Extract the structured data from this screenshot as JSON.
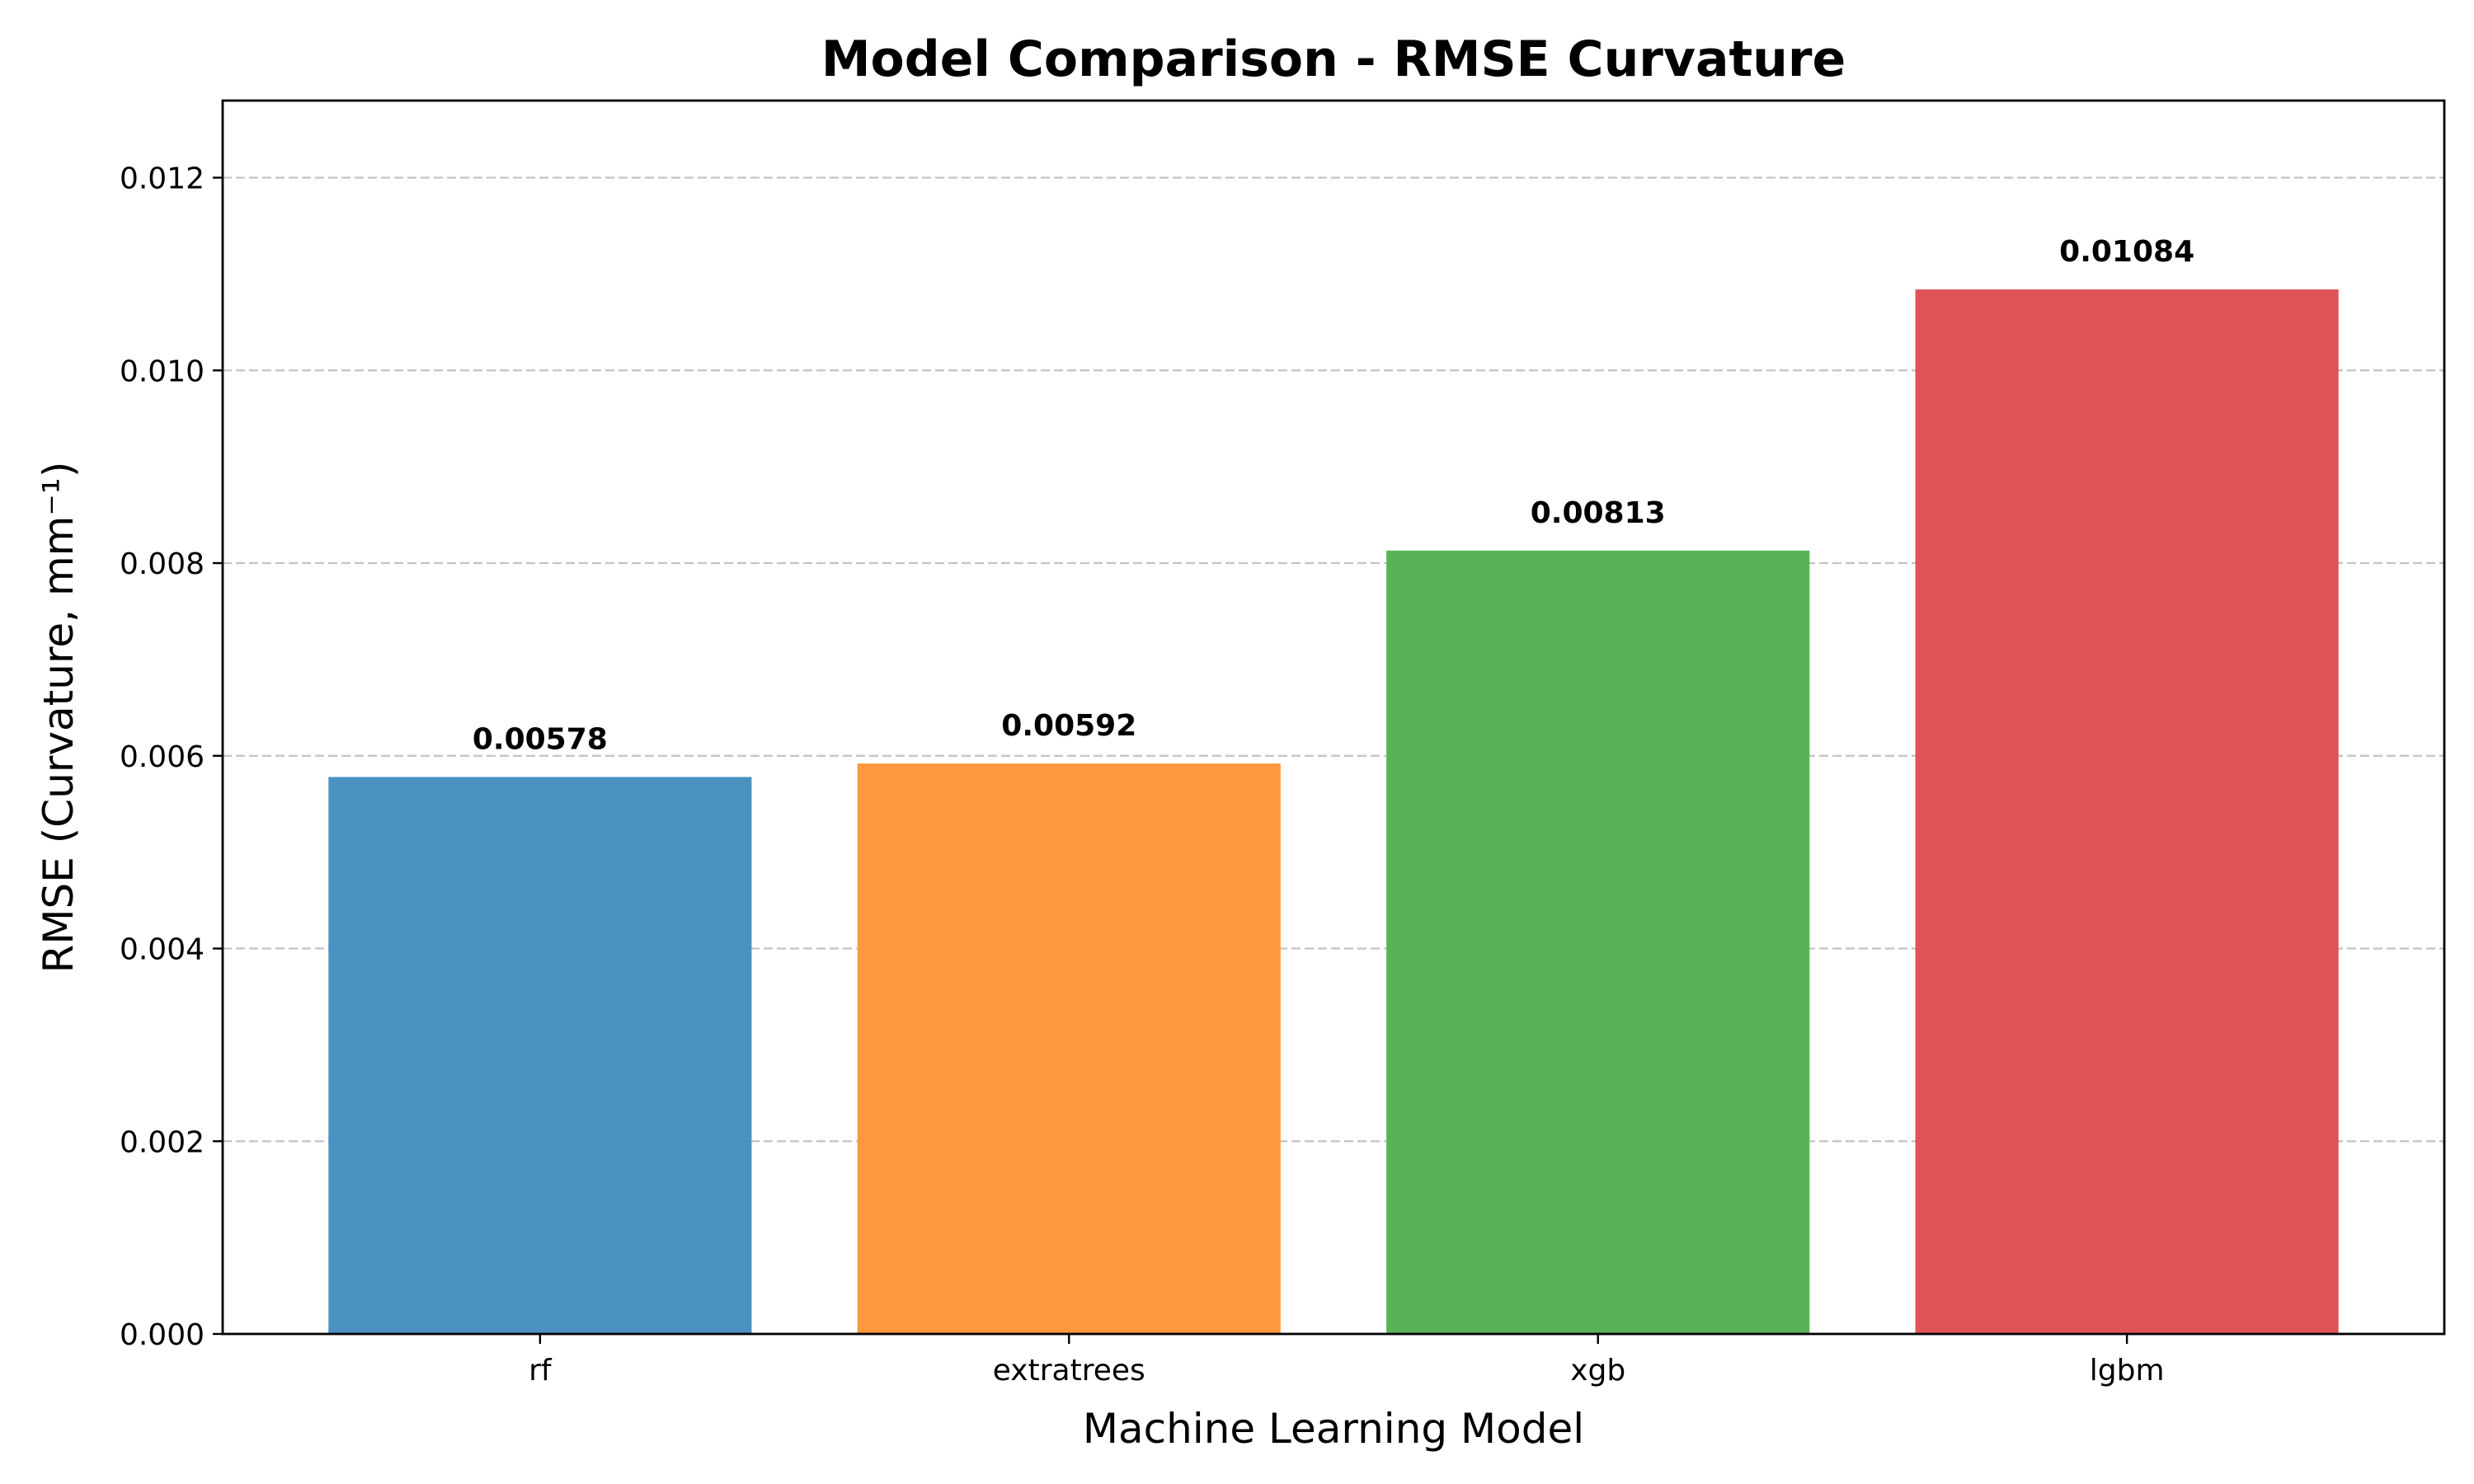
{
  "chart_data": {
    "type": "bar",
    "title": "Model Comparison - RMSE Curvature",
    "xlabel": "Machine Learning Model",
    "ylabel": "RMSE (Curvature, mm⁻¹)",
    "categories": [
      "rf",
      "extratrees",
      "xgb",
      "lgbm"
    ],
    "values": [
      0.00578,
      0.00592,
      0.00813,
      0.01084
    ],
    "value_labels": [
      "0.00578",
      "0.00592",
      "0.00813",
      "0.01084"
    ],
    "colors": [
      "#4b91c2",
      "#fe983e",
      "#58b358",
      "#df5356"
    ],
    "ylim": [
      0,
      0.0128
    ],
    "yticks": [
      0,
      0.002,
      0.004,
      0.006,
      0.008,
      0.01,
      0.012
    ],
    "ytick_labels": [
      "0.000",
      "0.002",
      "0.004",
      "0.006",
      "0.008",
      "0.010",
      "0.012"
    ],
    "grid": "y-axis, dashed",
    "legend": "none"
  }
}
